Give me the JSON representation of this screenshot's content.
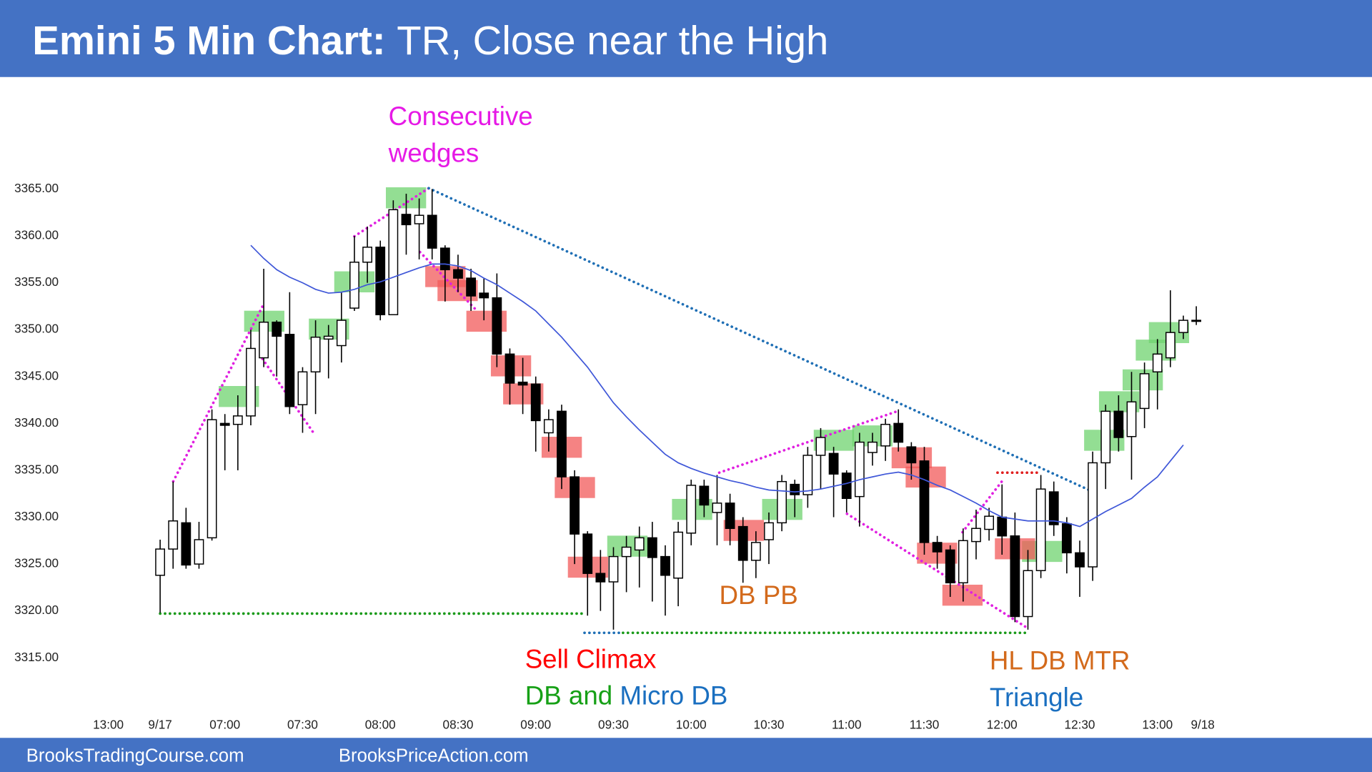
{
  "chart_data": {
    "type": "candlestick",
    "title": "Emini 5 Min Chart:",
    "subtitle": "TR, Close near the High",
    "open": [
      3323.8,
      3326.6,
      3329.4,
      3325,
      3327.8,
      3340,
      3339.9,
      3340.8,
      3347,
      3350.8,
      3349.5,
      3342,
      3345.5,
      3349,
      3348.3,
      3352.3,
      3357.2,
      3358.8,
      3351.6,
      3362.3,
      3361.3,
      3362.2,
      3358.7,
      3356.4,
      3355.5,
      3353.9,
      3353.4,
      3347.4,
      3344.4,
      3344.2,
      3339,
      3341.3,
      3334.3,
      3328.2,
      3324,
      3323.1,
      3325.8,
      3326.5,
      3327.8,
      3325.8,
      3323.5,
      3328.3,
      3333.3,
      3330.5,
      3331.5,
      3329,
      3325.4,
      3327.6,
      3329.4,
      3333.5,
      3332.4,
      3336.6,
      3336.8,
      3334.7,
      3332.2,
      3336.9,
      3337.6,
      3340,
      3337.5,
      3336,
      3327.3,
      3326.5,
      3323,
      3327.4,
      3328.7,
      3330,
      3328,
      3319.4,
      3324.3,
      3332.7,
      3329.3,
      3326.2,
      3324.7,
      3335.8,
      3341.3,
      3338.6,
      3341.6,
      3345.5,
      3347,
      3349.7,
      3351
    ],
    "high": [
      3327.6,
      3333.8,
      3331,
      3329.5,
      3341.5,
      3341,
      3343,
      3350,
      3356.5,
      3351,
      3354,
      3346,
      3351,
      3350.5,
      3354,
      3360,
      3361,
      3359.5,
      3363.8,
      3364.5,
      3364,
      3365,
      3359,
      3358,
      3356.5,
      3355.5,
      3356,
      3348,
      3347,
      3345,
      3341.5,
      3342,
      3335,
      3328.5,
      3326.5,
      3326.8,
      3328,
      3329,
      3329.5,
      3327,
      3329.5,
      3334,
      3334,
      3334.5,
      3332.5,
      3330,
      3328.5,
      3330.5,
      3334.5,
      3334,
      3337.5,
      3339.5,
      3337.5,
      3335,
      3339,
      3339,
      3340.5,
      3341.5,
      3338,
      3337.5,
      3328,
      3327,
      3328.8,
      3330.8,
      3331,
      3333.5,
      3330.5,
      3326.5,
      3334.5,
      3333.8,
      3330,
      3327.5,
      3337,
      3342,
      3343,
      3345.5,
      3346.5,
      3349,
      3354.2,
      3351.5,
      3352.5
    ],
    "low": [
      3319.8,
      3324.5,
      3324.5,
      3324.5,
      3327.5,
      3335,
      3335,
      3339.8,
      3346,
      3345,
      3341,
      3339,
      3341,
      3344.8,
      3346.5,
      3352,
      3355,
      3351,
      3351.6,
      3358,
      3357.5,
      3357.5,
      3353,
      3354,
      3352,
      3351,
      3346,
      3342,
      3341,
      3337,
      3337,
      3333,
      3325,
      3319.5,
      3320,
      3318,
      3322,
      3322.5,
      3321,
      3319.5,
      3320.5,
      3327,
      3330,
      3327,
      3327,
      3323,
      3323.5,
      3325,
      3328.5,
      3330,
      3331,
      3333,
      3330,
      3330.5,
      3329,
      3335.5,
      3336,
      3337,
      3334,
      3326,
      3324.5,
      3321.5,
      3321,
      3325.5,
      3327.5,
      3326,
      3318.8,
      3318,
      3323.5,
      3328,
      3324,
      3321.5,
      3323.2,
      3333,
      3337,
      3334,
      3339.5,
      3341.5,
      3346,
      3349,
      3350.5
    ],
    "close": [
      3326.6,
      3329.6,
      3324.9,
      3327.6,
      3340.4,
      3339.8,
      3340.8,
      3348,
      3350.8,
      3349.3,
      3341.8,
      3345.5,
      3349.2,
      3349.3,
      3351,
      3357.2,
      3358.8,
      3351.6,
      3362.8,
      3361.2,
      3362.2,
      3358.7,
      3356.4,
      3355.5,
      3353.6,
      3353.4,
      3347.4,
      3344.3,
      3344.1,
      3340.3,
      3340.4,
      3334.3,
      3328.2,
      3324,
      3323.1,
      3325.8,
      3326.8,
      3327.8,
      3325.7,
      3323.8,
      3328.4,
      3333.4,
      3331.3,
      3331.5,
      3328.8,
      3325.4,
      3327.3,
      3329.4,
      3333.8,
      3332.4,
      3336.6,
      3338.5,
      3334.6,
      3332,
      3338,
      3338,
      3339.9,
      3338,
      3335.8,
      3327.3,
      3326.3,
      3323,
      3327.5,
      3328.8,
      3330.1,
      3328,
      3319.4,
      3324.3,
      3333,
      3329.2,
      3326.2,
      3324.7,
      3335.8,
      3341.3,
      3338.5,
      3342.3,
      3345.3,
      3347.4,
      3349.7,
      3351,
      3351
    ],
    "ma": {
      "color": "#3f57d8",
      "values": [
        null,
        null,
        null,
        null,
        null,
        null,
        null,
        3359.0,
        3357.6,
        3356.4,
        3355.6,
        3355.0,
        3354.3,
        3353.9,
        3354.0,
        3354.3,
        3354.8,
        3355.1,
        3355.6,
        3356.1,
        3356.6,
        3357.0,
        3357.0,
        3356.8,
        3356.3,
        3355.5,
        3354.8,
        3353.9,
        3353.0,
        3352.0,
        3350.6,
        3349.2,
        3347.6,
        3346.0,
        3344.1,
        3342.2,
        3340.7,
        3339.3,
        3338.0,
        3336.7,
        3335.8,
        3335.2,
        3334.7,
        3334.3,
        3333.9,
        3333.6,
        3333.2,
        3332.9,
        3332.8,
        3332.7,
        3332.8,
        3333.0,
        3333.3,
        3333.6,
        3334.0,
        3334.3,
        3334.6,
        3334.8,
        3334.5,
        3334.0,
        3333.4,
        3332.9,
        3332.2,
        3331.5,
        3330.7,
        3330.0,
        3329.8,
        3329.6,
        3329.6,
        3329.6,
        3329.4,
        3329.0,
        3329.8,
        3330.6,
        3331.3,
        3332.0,
        3333.2,
        3334.3,
        3336.0,
        3337.7,
        null
      ]
    },
    "bull_color": "#ffffff",
    "bear_color": "#000000",
    "xlim": [
      -5,
      81
    ],
    "xticks": [
      {
        "value": -4,
        "label": "13:00"
      },
      {
        "value": 0,
        "label": "9/17"
      },
      {
        "value": 5,
        "label": "07:00"
      },
      {
        "value": 11,
        "label": "07:30"
      },
      {
        "value": 17,
        "label": "08:00"
      },
      {
        "value": 23,
        "label": "08:30"
      },
      {
        "value": 29,
        "label": "09:00"
      },
      {
        "value": 35,
        "label": "09:30"
      },
      {
        "value": 41,
        "label": "10:00"
      },
      {
        "value": 47,
        "label": "10:30"
      },
      {
        "value": 53,
        "label": "11:00"
      },
      {
        "value": 59,
        "label": "11:30"
      },
      {
        "value": 65,
        "label": "12:00"
      },
      {
        "value": 71,
        "label": "12:30"
      },
      {
        "value": 77,
        "label": "13:00"
      },
      {
        "value": 80.5,
        "label": "9/18"
      }
    ],
    "ylim": [
      3307,
      3375
    ],
    "yticks": [
      {
        "value": 3315,
        "label": "3315.00"
      },
      {
        "value": 3320,
        "label": "3320.00"
      },
      {
        "value": 3325,
        "label": "3325.00"
      },
      {
        "value": 3330,
        "label": "3330.00"
      },
      {
        "value": 3335,
        "label": "3335.00"
      },
      {
        "value": 3340,
        "label": "3340.00"
      },
      {
        "value": 3345,
        "label": "3345.00"
      },
      {
        "value": 3350,
        "label": "3350.00"
      },
      {
        "value": 3355,
        "label": "3355.00"
      },
      {
        "value": 3360,
        "label": "3360.00"
      },
      {
        "value": 3365,
        "label": "3365.00"
      }
    ],
    "annotations": [
      "Consecutive",
      "wedges",
      "Sell Climax",
      "DB and",
      "Micro DB",
      "DB PB",
      "HL DB MTR",
      "Triangle"
    ]
  },
  "footer": [
    "BrooksTradingCourse.com",
    "BrooksPriceAction.com"
  ]
}
